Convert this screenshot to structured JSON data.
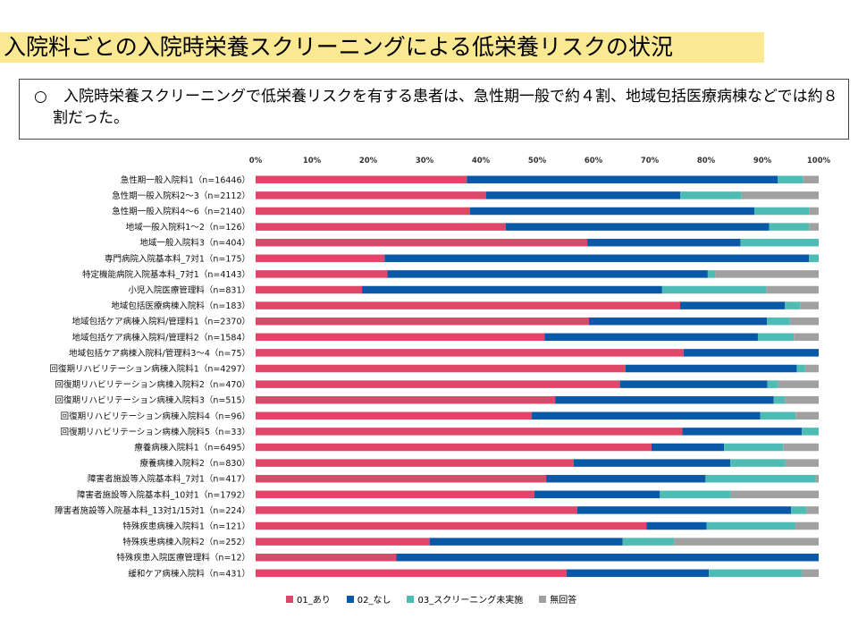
{
  "title": "入院料ごとの入院時栄養スクリーニングによる低栄養リスクの状況",
  "summary": {
    "bullet": "○",
    "text": "入院時栄養スクリーニングで低栄養リスクを有する患者は、急性期一般で約４割、地域包括医療病棟などでは約８割だった。"
  },
  "chart_data": {
    "type": "bar",
    "orientation": "horizontal",
    "stacked": true,
    "percent": true,
    "x_ticks": [
      "0%",
      "10%",
      "20%",
      "30%",
      "40%",
      "50%",
      "60%",
      "70%",
      "80%",
      "90%",
      "100%"
    ],
    "xlim": [
      0,
      100
    ],
    "legend_position": "bottom",
    "categories": [
      "急性期一般入院料1（n=16446）",
      "急性期一般入院料2～3（n=2112）",
      "急性期一般入院料4～6（n=2140）",
      "地域一般入院料1～2（n=126）",
      "地域一般入院料3（n=404）",
      "専門病院入院基本料_7対1（n=175）",
      "特定機能病院入院基本料_7対1（n=4143）",
      "小児入院医療管理料（n=831）",
      "地域包括医療病棟入院料（n=183）",
      "地域包括ケア病棟入院料/管理料1（n=2370）",
      "地域包括ケア病棟入院料/管理料2（n=1584）",
      "地域包括ケア病棟入院料/管理料3～4（n=75）",
      "回復期リハビリテーション病棟入院料1（n=4297）",
      "回復期リハビリテーション病棟入院料2（n=470）",
      "回復期リハビリテーション病棟入院料3（n=515）",
      "回復期リハビリテーション病棟入院料4（n=96）",
      "回復期リハビリテーション病棟入院料5（n=33）",
      "療養病棟入院料1（n=6495）",
      "療養病棟入院料2（n=830）",
      "障害者施設等入院基本料_7対1（n=417）",
      "障害者施設等入院基本料_10対1（n=1792）",
      "障害者施設等入院基本料_13対1/15対1（n=224）",
      "特殊疾患病棟入院料1（n=121）",
      "特殊疾患病棟入院料2（n=252）",
      "特殊疾患入院医療管理料（n=12）",
      "緩和ケア病棟入院料（n=431）"
    ],
    "series": [
      {
        "name": "01_あり",
        "color": "#e0466a",
        "values": [
          37.5,
          40.9,
          38.1,
          44.4,
          58.9,
          22.9,
          23.4,
          18.9,
          75.4,
          59.2,
          51.3,
          76.0,
          65.7,
          64.7,
          53.2,
          49.0,
          75.8,
          70.3,
          56.5,
          51.6,
          49.5,
          57.1,
          69.4,
          30.9,
          25.0,
          55.2
        ]
      },
      {
        "name": "02_なし",
        "color": "#0a58a8",
        "values": [
          55.2,
          34.5,
          50.5,
          46.8,
          27.2,
          75.4,
          56.9,
          53.3,
          18.6,
          31.6,
          37.9,
          24.0,
          30.4,
          26.2,
          38.8,
          40.6,
          21.2,
          12.9,
          27.8,
          28.3,
          22.3,
          38.0,
          10.7,
          34.3,
          75.0,
          25.3
        ]
      },
      {
        "name": "03_スクリーニング未実施",
        "color": "#4dbcb4",
        "values": [
          4.5,
          10.9,
          9.7,
          7.1,
          13.9,
          1.7,
          1.3,
          18.5,
          2.7,
          4.1,
          6.4,
          0.0,
          1.5,
          1.9,
          2.0,
          6.3,
          3.0,
          10.5,
          9.8,
          19.6,
          12.6,
          2.7,
          15.7,
          9.1,
          0.0,
          16.5
        ]
      },
      {
        "name": "無回答",
        "color": "#a0a0a0",
        "values": [
          2.8,
          13.7,
          1.7,
          1.7,
          0.0,
          0.0,
          18.4,
          9.3,
          3.3,
          5.1,
          4.4,
          0.0,
          2.4,
          7.2,
          6.0,
          4.1,
          0.0,
          6.3,
          5.9,
          0.5,
          15.6,
          2.2,
          4.2,
          25.7,
          0.0,
          3.0
        ]
      }
    ]
  }
}
